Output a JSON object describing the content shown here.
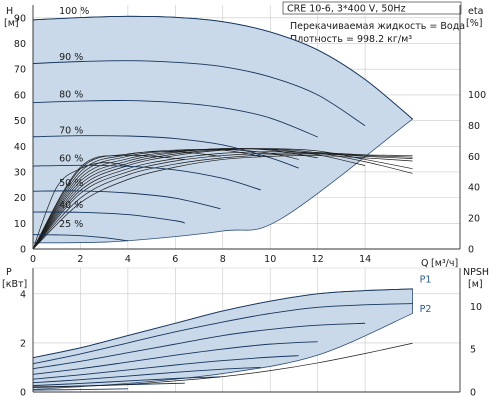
{
  "header": {
    "model": "CRE 10-6, 3*400 V, 50Hz",
    "liquid": "Перекачиваемая жидкость = Вода",
    "density": "Плотность = 998.2 кг/м³"
  },
  "colors": {
    "envelope": "#c9d9ea",
    "curve": "#17365d",
    "grid": "#c9c9c9"
  },
  "chart_data": [
    {
      "type": "line",
      "panel": "head",
      "ylabel_symbol": "H",
      "ylabel_unit": "[м]",
      "xlabel_symbol": "Q",
      "xlabel_unit": "[м³/ч]",
      "y2label_symbol": "eta",
      "y2label_unit": "[%]",
      "xlim": [
        0,
        18
      ],
      "ylim": [
        0,
        95
      ],
      "x_ticks": [
        0,
        2,
        4,
        6,
        8,
        10,
        12,
        14
      ],
      "y_ticks": [
        0,
        10,
        20,
        30,
        40,
        50,
        60,
        70,
        80,
        90
      ],
      "y2_ticks": [
        0,
        20,
        40,
        60,
        80,
        100
      ],
      "y2lim": [
        0,
        158
      ],
      "grid": true,
      "envelope": {
        "top": [
          [
            0,
            89.2
          ],
          [
            2,
            90.1
          ],
          [
            4,
            90.6
          ],
          [
            6,
            90.2
          ],
          [
            8,
            88.5
          ],
          [
            10,
            84.5
          ],
          [
            12,
            77.5
          ],
          [
            14,
            66
          ],
          [
            16,
            50.6
          ]
        ],
        "bottom": [
          [
            16,
            50.6
          ],
          [
            10.5,
            12
          ],
          [
            8,
            7
          ],
          [
            4,
            3.2
          ],
          [
            2,
            2.5
          ],
          [
            0,
            2.4
          ]
        ]
      },
      "series": [
        {
          "name": "100 %",
          "label_pos": [
            1.1,
            91.5
          ],
          "values": [
            [
              0,
              89.2
            ],
            [
              2,
              90.1
            ],
            [
              4,
              90.6
            ],
            [
              6,
              90.2
            ],
            [
              8,
              88.5
            ],
            [
              10,
              84.5
            ],
            [
              12,
              77.5
            ],
            [
              14,
              66
            ],
            [
              16,
              50.6
            ]
          ]
        },
        {
          "name": "90 %",
          "label_pos": [
            1.1,
            73.5
          ],
          "values": [
            [
              0,
              72.2
            ],
            [
              2,
              73
            ],
            [
              4,
              73.3
            ],
            [
              6,
              72.7
            ],
            [
              8,
              71
            ],
            [
              10,
              67
            ],
            [
              12,
              60
            ],
            [
              14,
              48
            ]
          ]
        },
        {
          "name": "80 %",
          "label_pos": [
            1.1,
            59
          ],
          "values": [
            [
              0,
              57
            ],
            [
              2,
              57.6
            ],
            [
              4,
              57.8
            ],
            [
              6,
              57
            ],
            [
              8,
              55
            ],
            [
              10,
              51
            ],
            [
              12,
              43.6
            ]
          ]
        },
        {
          "name": "70 %",
          "label_pos": [
            1.1,
            45
          ],
          "values": [
            [
              0,
              43.7
            ],
            [
              2,
              44.1
            ],
            [
              4,
              44
            ],
            [
              6,
              43
            ],
            [
              8,
              40.5
            ],
            [
              10,
              35.5
            ],
            [
              11.2,
              31.5
            ]
          ]
        },
        {
          "name": "60 %",
          "label_pos": [
            1.1,
            34
          ],
          "values": [
            [
              0,
              32.3
            ],
            [
              2,
              32.6
            ],
            [
              4,
              32.2
            ],
            [
              6,
              30.8
            ],
            [
              8,
              27.5
            ],
            [
              9.6,
              23
            ]
          ]
        },
        {
          "name": "50 %",
          "label_pos": [
            1.1,
            24.5
          ],
          "values": [
            [
              0,
              22.5
            ],
            [
              2,
              22.6
            ],
            [
              4,
              21.8
            ],
            [
              6,
              19.8
            ],
            [
              7.9,
              15.7
            ]
          ]
        },
        {
          "name": "40 %",
          "label_pos": [
            1.1,
            16
          ],
          "values": [
            [
              0,
              14.4
            ],
            [
              2,
              14.3
            ],
            [
              4,
              13.4
            ],
            [
              6,
              11
            ],
            [
              6.4,
              10.1
            ]
          ]
        },
        {
          "name": "25 %",
          "label_pos": [
            1.1,
            8.5
          ],
          "values": [
            [
              0,
              5.6
            ],
            [
              1,
              5.5
            ],
            [
              2,
              5.2
            ],
            [
              3,
              4.4
            ],
            [
              4,
              3.2
            ]
          ]
        }
      ],
      "eta_series": [
        {
          "values": [
            [
              0,
              0
            ],
            [
              2,
              40
            ],
            [
              4,
              54
            ],
            [
              6,
              60.5
            ],
            [
              8,
              64
            ],
            [
              10,
              65
            ],
            [
              12,
              63.5
            ],
            [
              14,
              58
            ],
            [
              16,
              52
            ]
          ]
        },
        {
          "values": [
            [
              0,
              0
            ],
            [
              2,
              42
            ],
            [
              4,
              55.5
            ],
            [
              6,
              61.5
            ],
            [
              8,
              64.5
            ],
            [
              10,
              64.8
            ],
            [
              12,
              62.3
            ],
            [
              14,
              56.5
            ],
            [
              16,
              49
            ]
          ]
        },
        {
          "values": [
            [
              0,
              0
            ],
            [
              2,
              44
            ],
            [
              4,
              57
            ],
            [
              6,
              62.5
            ],
            [
              8,
              65
            ],
            [
              10,
              64.5
            ],
            [
              12,
              61
            ],
            [
              14,
              54
            ]
          ]
        },
        {
          "values": [
            [
              0,
              0
            ],
            [
              2,
              46
            ],
            [
              4,
              58.5
            ],
            [
              6,
              63
            ],
            [
              8,
              65
            ],
            [
              10,
              64
            ],
            [
              12,
              59
            ]
          ]
        },
        {
          "values": [
            [
              0,
              0
            ],
            [
              2,
              48
            ],
            [
              4,
              60
            ],
            [
              6,
              63.5
            ],
            [
              8,
              64.5
            ],
            [
              10,
              62
            ],
            [
              11.2,
              58
            ]
          ]
        },
        {
          "values": [
            [
              0,
              0
            ],
            [
              2,
              50
            ],
            [
              4,
              61
            ],
            [
              6,
              64
            ],
            [
              8,
              64
            ],
            [
              9.6,
              60
            ]
          ]
        },
        {
          "values": [
            [
              0,
              0
            ],
            [
              2,
              52
            ],
            [
              4,
              61.5
            ],
            [
              6,
              63
            ],
            [
              7.9,
              60
            ]
          ]
        },
        {
          "values": [
            [
              0,
              0
            ],
            [
              2,
              53
            ],
            [
              4,
              60.5
            ],
            [
              6.4,
              58
            ]
          ]
        },
        {
          "values": [
            [
              0,
              0
            ],
            [
              1,
              40
            ],
            [
              2,
              52
            ],
            [
              3,
              56
            ],
            [
              4,
              54
            ]
          ]
        },
        {
          "values": [
            [
              0,
              0
            ],
            [
              2,
              30
            ],
            [
              4,
              45
            ],
            [
              6,
              53
            ],
            [
              8,
              58
            ],
            [
              10,
              60
            ],
            [
              12,
              60.5
            ],
            [
              14,
              59
            ],
            [
              16,
              57
            ]
          ]
        },
        {
          "values": [
            [
              0,
              0
            ],
            [
              2,
              33
            ],
            [
              4,
              48
            ],
            [
              6,
              55
            ],
            [
              8,
              59
            ],
            [
              10,
              61
            ],
            [
              12,
              61.5
            ],
            [
              14,
              60
            ],
            [
              16,
              58.5
            ]
          ]
        },
        {
          "values": [
            [
              0,
              0
            ],
            [
              2,
              36
            ],
            [
              4,
              50
            ],
            [
              6,
              57
            ],
            [
              8,
              60.5
            ],
            [
              10,
              62
            ],
            [
              12,
              62
            ],
            [
              14,
              60.5
            ],
            [
              16,
              59.5
            ]
          ]
        },
        {
          "values": [
            [
              0,
              0
            ],
            [
              2,
              38
            ],
            [
              4,
              52
            ],
            [
              6,
              58.5
            ],
            [
              8,
              62
            ],
            [
              10,
              63
            ],
            [
              12,
              62.5
            ],
            [
              14,
              61
            ],
            [
              16,
              60.5
            ]
          ]
        }
      ]
    },
    {
      "type": "line",
      "panel": "power",
      "ylabel_symbol": "P",
      "ylabel_unit": "[кВт]",
      "y2label_symbol": "NPSH",
      "y2label_unit": "[м]",
      "xlim": [
        0,
        18
      ],
      "ylim": [
        0,
        5.05
      ],
      "y2lim": [
        0,
        14.5
      ],
      "y_ticks": [
        0,
        2,
        4
      ],
      "y2_ticks": [
        0,
        5,
        10
      ],
      "grid": true,
      "envelope": {
        "top": [
          [
            0,
            1.4
          ],
          [
            2,
            1.8
          ],
          [
            4,
            2.3
          ],
          [
            6,
            2.8
          ],
          [
            8,
            3.3
          ],
          [
            10,
            3.7
          ],
          [
            12,
            4
          ],
          [
            14,
            4.13
          ],
          [
            16,
            4.2
          ]
        ],
        "bottom": [
          [
            16,
            3.2
          ],
          [
            12,
            1.5
          ],
          [
            8,
            0.75
          ],
          [
            4,
            0.35
          ],
          [
            0,
            0.1
          ]
        ]
      },
      "power_series": [
        {
          "name": "P1",
          "label_pos": [
            16.3,
            4.45
          ],
          "values": [
            [
              0,
              1.4
            ],
            [
              2,
              1.8
            ],
            [
              4,
              2.3
            ],
            [
              6,
              2.8
            ],
            [
              8,
              3.3
            ],
            [
              10,
              3.7
            ],
            [
              12,
              4
            ],
            [
              14,
              4.13
            ],
            [
              16,
              4.2
            ]
          ]
        },
        {
          "name": "P2",
          "label_pos": [
            16.3,
            3.25
          ],
          "values": [
            [
              0,
              1.15
            ],
            [
              2,
              1.55
            ],
            [
              4,
              2
            ],
            [
              6,
              2.45
            ],
            [
              8,
              2.85
            ],
            [
              10,
              3.2
            ],
            [
              12,
              3.45
            ],
            [
              14,
              3.55
            ],
            [
              16,
              3.6
            ]
          ]
        },
        {
          "values": [
            [
              0,
              0.95
            ],
            [
              2,
              1.25
            ],
            [
              4,
              1.6
            ],
            [
              6,
              1.95
            ],
            [
              8,
              2.3
            ],
            [
              10,
              2.55
            ],
            [
              12,
              2.72
            ],
            [
              14,
              2.8
            ]
          ]
        },
        {
          "values": [
            [
              0,
              0.72
            ],
            [
              2,
              0.95
            ],
            [
              4,
              1.22
            ],
            [
              6,
              1.5
            ],
            [
              8,
              1.75
            ],
            [
              10,
              1.95
            ],
            [
              12,
              2.05
            ]
          ]
        },
        {
          "values": [
            [
              0,
              0.52
            ],
            [
              2,
              0.7
            ],
            [
              4,
              0.9
            ],
            [
              6,
              1.1
            ],
            [
              8,
              1.28
            ],
            [
              10,
              1.42
            ],
            [
              11.2,
              1.48
            ]
          ]
        },
        {
          "values": [
            [
              0,
              0.38
            ],
            [
              2,
              0.5
            ],
            [
              4,
              0.65
            ],
            [
              6,
              0.8
            ],
            [
              8,
              0.93
            ],
            [
              9.6,
              1.0
            ]
          ]
        },
        {
          "values": [
            [
              0,
              0.26
            ],
            [
              2,
              0.35
            ],
            [
              4,
              0.45
            ],
            [
              6,
              0.55
            ],
            [
              7.9,
              0.62
            ]
          ]
        },
        {
          "values": [
            [
              0,
              0.18
            ],
            [
              2,
              0.24
            ],
            [
              4,
              0.3
            ],
            [
              6.4,
              0.36
            ]
          ]
        },
        {
          "values": [
            [
              0,
              0.08
            ],
            [
              2,
              0.1
            ],
            [
              4,
              0.13
            ]
          ]
        }
      ],
      "npsh_series": {
        "values": [
          [
            0,
            0.6
          ],
          [
            2,
            0.7
          ],
          [
            4,
            0.9
          ],
          [
            6,
            1.3
          ],
          [
            8,
            1.8
          ],
          [
            10,
            2.5
          ],
          [
            12,
            3.4
          ],
          [
            14,
            4.5
          ],
          [
            16,
            5.7
          ]
        ]
      }
    }
  ]
}
